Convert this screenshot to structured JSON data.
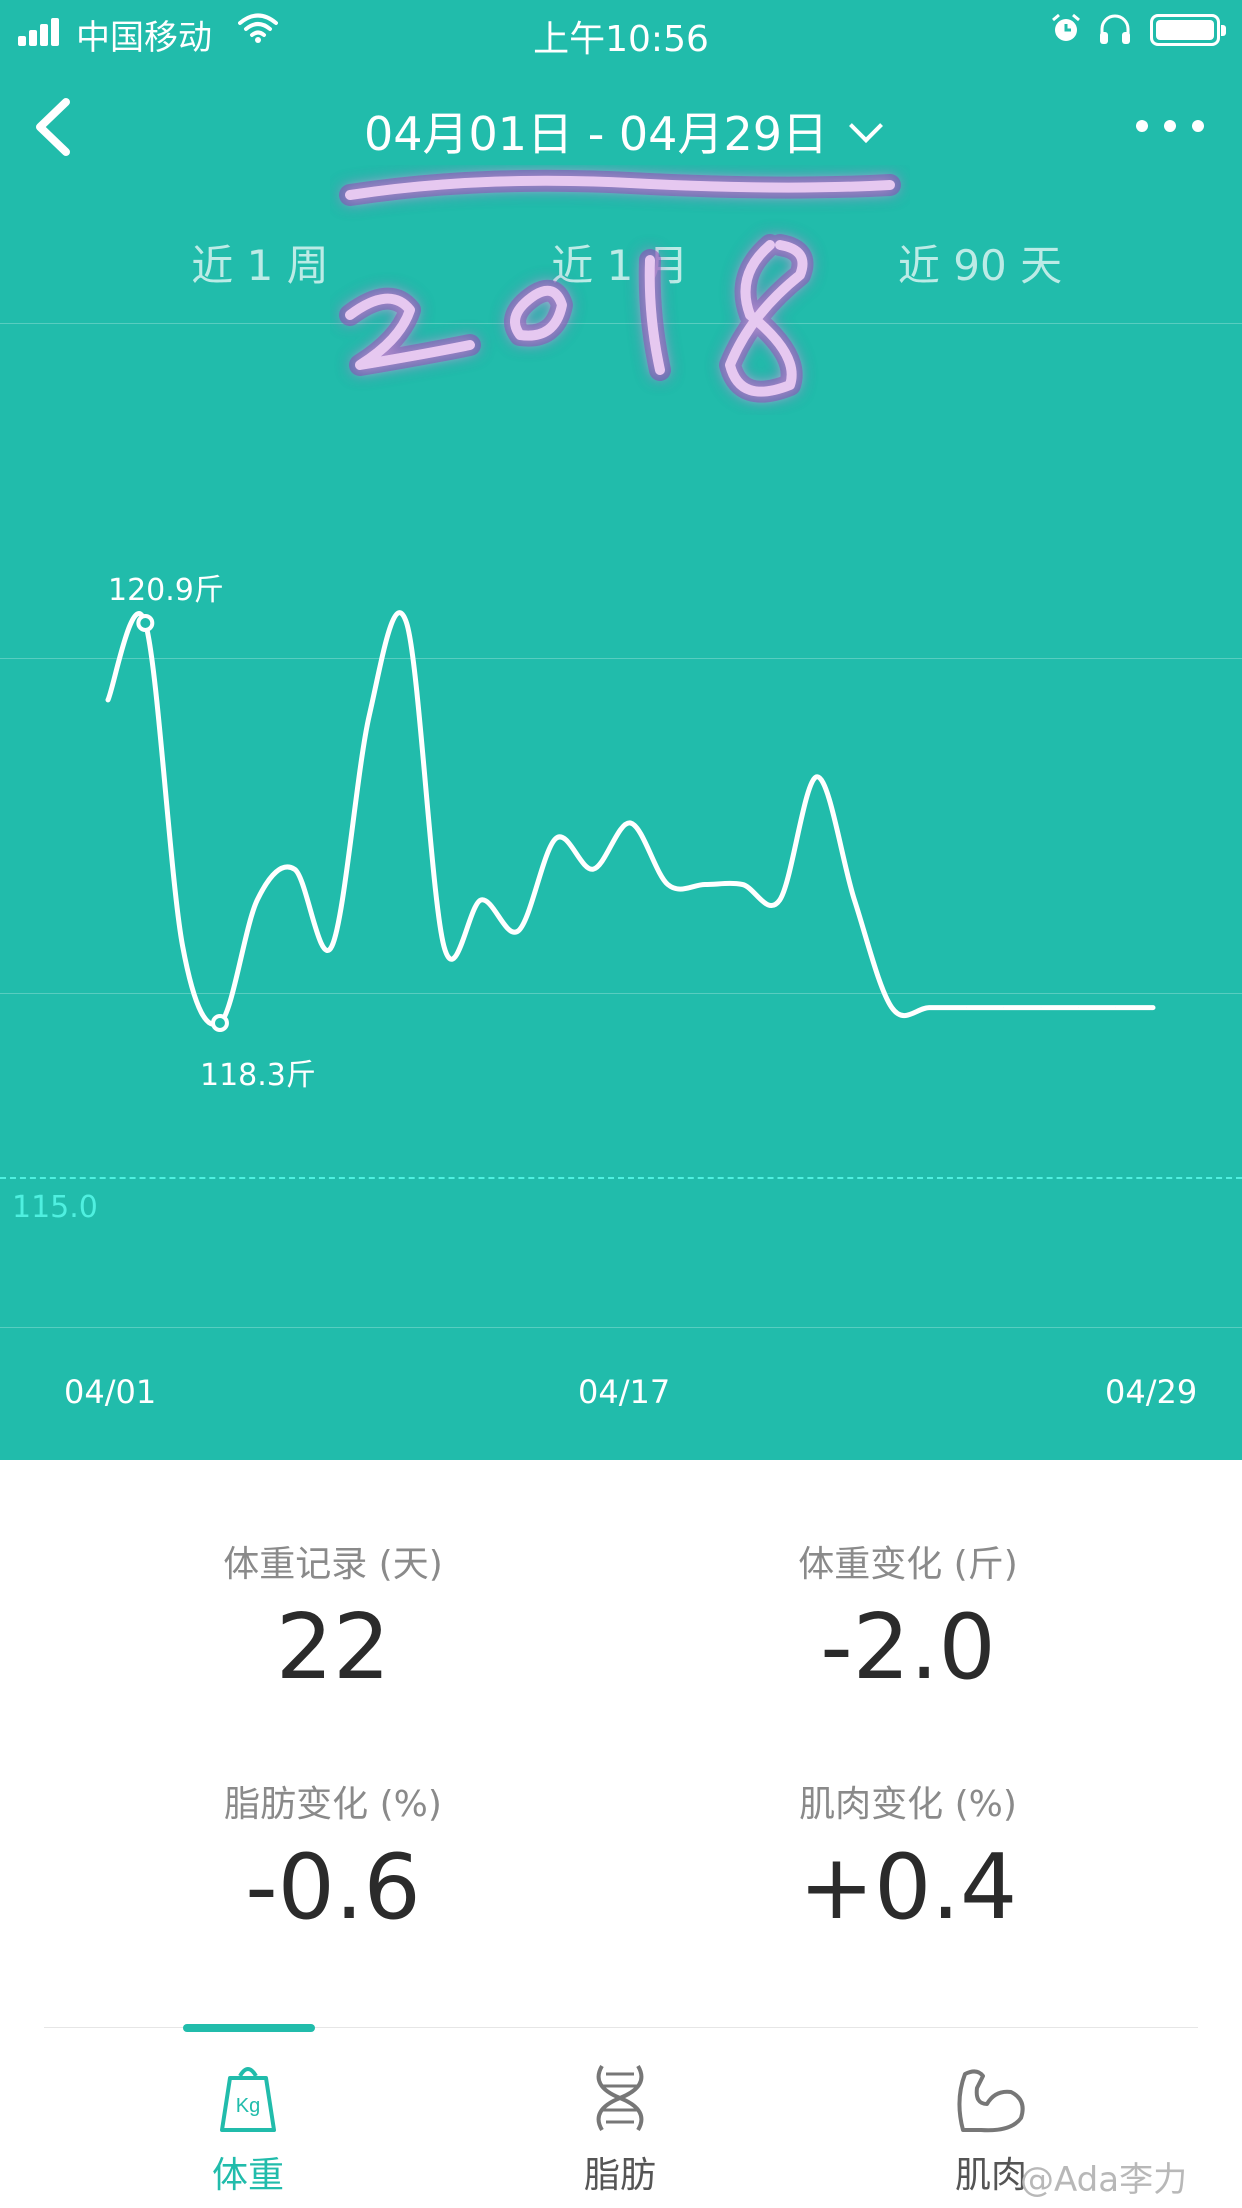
{
  "status_bar": {
    "carrier": "中国移动",
    "time": "上午10:56"
  },
  "header": {
    "date_range": "04月01日 - 04月29日",
    "handwritten_year": "2018"
  },
  "range_tabs": [
    "近 1 周",
    "近 1 月",
    "近 90 天"
  ],
  "chart_data": {
    "type": "line",
    "x": [
      "04/01",
      "04/02",
      "04/03",
      "04/04",
      "04/05",
      "04/06",
      "04/07",
      "04/08",
      "04/09",
      "04/10",
      "04/11",
      "04/12",
      "04/13",
      "04/14",
      "04/15",
      "04/16",
      "04/17",
      "04/18",
      "04/19",
      "04/20",
      "04/21",
      "04/22",
      "04/23",
      "04/24",
      "04/25",
      "04/26",
      "04/27",
      "04/28",
      "04/29"
    ],
    "values": [
      120.4,
      120.9,
      118.8,
      118.3,
      119.1,
      119.3,
      118.8,
      120.3,
      120.9,
      118.8,
      119.1,
      118.9,
      119.5,
      119.3,
      119.6,
      119.2,
      119.2,
      119.2,
      119.1,
      119.9,
      119.1,
      118.4,
      118.4,
      118.4,
      118.4,
      118.4,
      118.4,
      118.4,
      118.4
    ],
    "xticks": [
      "04/01",
      "04/17",
      "04/29"
    ],
    "max_label": "120.9斤",
    "min_label": "118.3斤",
    "reference_value": "115.0",
    "grid": true,
    "line_color": "#ffffff",
    "background": "#21bcab"
  },
  "stats": [
    {
      "label": "体重记录 (天)",
      "value": "22"
    },
    {
      "label": "体重变化 (斤)",
      "value": "-2.0"
    },
    {
      "label": "脂肪变化 (%)",
      "value": "-0.6"
    },
    {
      "label": "肌肉变化 (%)",
      "value": "+0.4"
    }
  ],
  "bottom_nav": [
    {
      "label": "体重",
      "icon": "scale-kg-icon",
      "active": true
    },
    {
      "label": "脂肪",
      "icon": "dna-icon",
      "active": false
    },
    {
      "label": "肌肉",
      "icon": "muscle-arm-icon",
      "active": false
    }
  ],
  "watermark": "@Ada李力",
  "colors": {
    "accent": "#21bcab",
    "reference": "#4ff0e0"
  }
}
